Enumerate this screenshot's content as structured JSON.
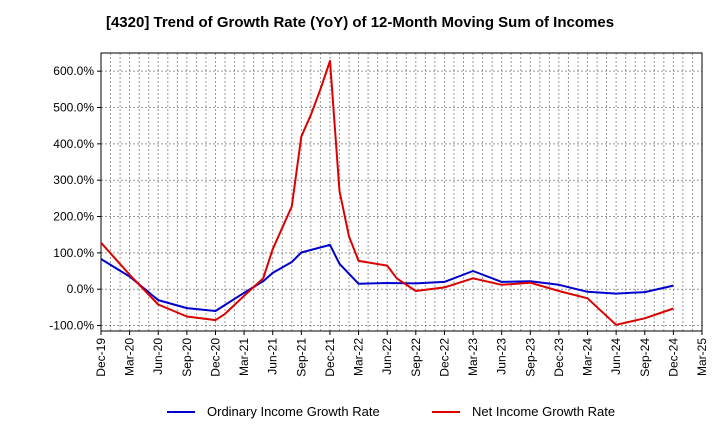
{
  "chart_data": {
    "type": "line",
    "title": "[4320]  Trend of Growth Rate (YoY) of 12-Month Moving Sum of Incomes",
    "xlabel": "",
    "ylabel": "",
    "x_tick_labels": [
      "Dec-19",
      "Mar-20",
      "Jun-20",
      "Sep-20",
      "Dec-20",
      "Mar-21",
      "Jun-21",
      "Sep-21",
      "Dec-21",
      "Mar-22",
      "Jun-22",
      "Sep-22",
      "Dec-22",
      "Mar-23",
      "Jun-23",
      "Sep-23",
      "Dec-23",
      "Mar-24",
      "Jun-24",
      "Sep-24",
      "Dec-24",
      "Mar-25"
    ],
    "y_tick_labels": [
      "-100.0%",
      "0.0%",
      "100.0%",
      "200.0%",
      "300.0%",
      "400.0%",
      "500.0%",
      "600.0%"
    ],
    "ylim": [
      -115,
      650
    ],
    "grid": true,
    "legend_position": "bottom",
    "series": [
      {
        "name": "Ordinary Income Growth Rate",
        "color": "#0000cc",
        "points": [
          {
            "x": "Dec-19",
            "y": 83
          },
          {
            "x": "Mar-20",
            "y": 35
          },
          {
            "x": "Jun-20",
            "y": -30
          },
          {
            "x": "Sep-20",
            "y": -52
          },
          {
            "x": "Dec-20",
            "y": -60
          },
          {
            "x": "Mar-21",
            "y": -10
          },
          {
            "x": "May-21",
            "y": 22
          },
          {
            "x": "Jun-21",
            "y": 45
          },
          {
            "x": "Aug-21",
            "y": 75
          },
          {
            "x": "Sep-21",
            "y": 101
          },
          {
            "x": "Dec-21",
            "y": 122
          },
          {
            "x": "Jan-22",
            "y": 70
          },
          {
            "x": "Mar-22",
            "y": 15
          },
          {
            "x": "Jun-22",
            "y": 17
          },
          {
            "x": "Sep-22",
            "y": 16
          },
          {
            "x": "Dec-22",
            "y": 20
          },
          {
            "x": "Mar-23",
            "y": 50
          },
          {
            "x": "Jun-23",
            "y": 20
          },
          {
            "x": "Sep-23",
            "y": 22
          },
          {
            "x": "Dec-23",
            "y": 12
          },
          {
            "x": "Mar-24",
            "y": -7
          },
          {
            "x": "Jun-24",
            "y": -12
          },
          {
            "x": "Sep-24",
            "y": -8
          },
          {
            "x": "Dec-24",
            "y": 10
          }
        ]
      },
      {
        "name": "Net Income Growth Rate",
        "color": "#dd0000",
        "points": [
          {
            "x": "Dec-19",
            "y": 128
          },
          {
            "x": "Mar-20",
            "y": 40
          },
          {
            "x": "Jun-20",
            "y": -42
          },
          {
            "x": "Sep-20",
            "y": -75
          },
          {
            "x": "Dec-20",
            "y": -85
          },
          {
            "x": "Jan-21",
            "y": -68
          },
          {
            "x": "Mar-21",
            "y": -18
          },
          {
            "x": "May-21",
            "y": 30
          },
          {
            "x": "Jun-21",
            "y": 110
          },
          {
            "x": "Aug-21",
            "y": 228
          },
          {
            "x": "Sep-21",
            "y": 420
          },
          {
            "x": "Oct-21",
            "y": 480
          },
          {
            "x": "Nov-21",
            "y": 550
          },
          {
            "x": "Dec-21",
            "y": 628
          },
          {
            "x": "Jan-22",
            "y": 270
          },
          {
            "x": "Feb-22",
            "y": 145
          },
          {
            "x": "Mar-22",
            "y": 78
          },
          {
            "x": "Jun-22",
            "y": 65
          },
          {
            "x": "Jul-22",
            "y": 30
          },
          {
            "x": "Sep-22",
            "y": -5
          },
          {
            "x": "Dec-22",
            "y": 5
          },
          {
            "x": "Mar-23",
            "y": 30
          },
          {
            "x": "Jun-23",
            "y": 12
          },
          {
            "x": "Sep-23",
            "y": 18
          },
          {
            "x": "Dec-23",
            "y": -5
          },
          {
            "x": "Mar-24",
            "y": -25
          },
          {
            "x": "Jun-24",
            "y": -98
          },
          {
            "x": "Sep-24",
            "y": -80
          },
          {
            "x": "Dec-24",
            "y": -53
          }
        ]
      }
    ]
  }
}
